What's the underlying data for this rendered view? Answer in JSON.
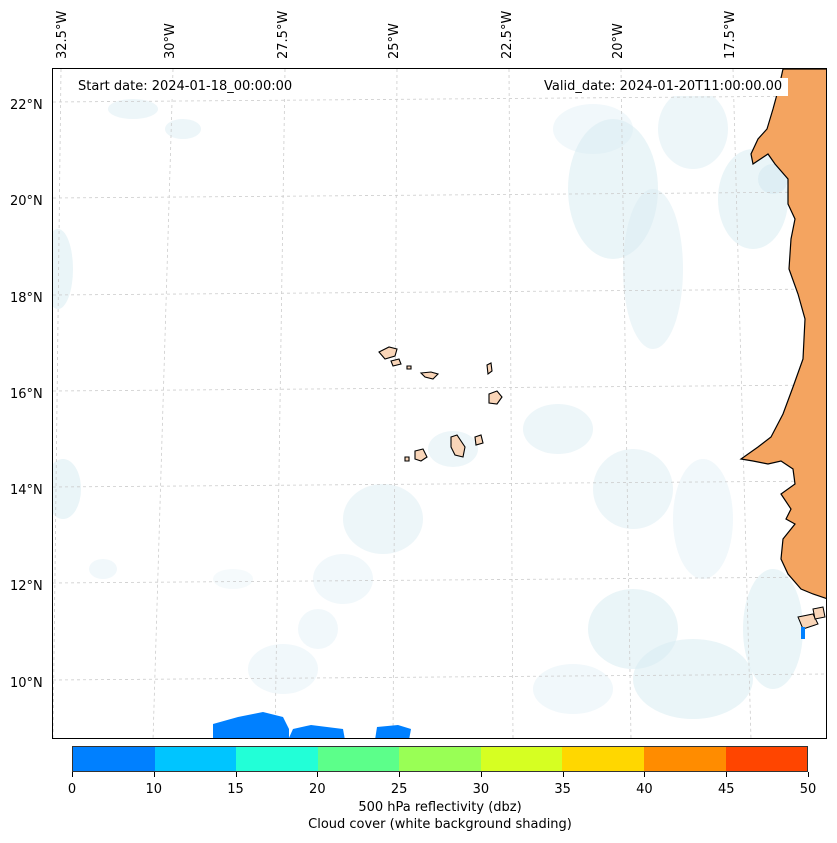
{
  "map": {
    "start_date": "Start date: 2024-01-18_00:00:00",
    "valid_date": "Valid_date: 2024-01-20T11:00:00.00",
    "lon_labels": [
      "32.5°W",
      "30°W",
      "27.5°W",
      "25°W",
      "22.5°W",
      "20°W",
      "17.5°W"
    ],
    "lat_labels": [
      "22°N",
      "20°N",
      "18°N",
      "16°N",
      "14°N",
      "12°N",
      "10°N"
    ],
    "colors": {
      "land_africa": "#f4a460",
      "land_islands": "#f9d5b8",
      "cloud": "#cfe7ef",
      "reflectivity_low": "#0080ff"
    }
  },
  "colorbar": {
    "ticks": [
      "0",
      "10",
      "15",
      "20",
      "25",
      "30",
      "35",
      "40",
      "45",
      "50"
    ],
    "colors": [
      "#0080ff",
      "#00c5ff",
      "#22ffd7",
      "#5cff8a",
      "#99ff55",
      "#d6ff22",
      "#ffd700",
      "#ff8c00",
      "#ff4500"
    ],
    "label_line1": "500 hPa reflectivity (dbz)",
    "label_line2": "Cloud cover (white background shading)"
  }
}
